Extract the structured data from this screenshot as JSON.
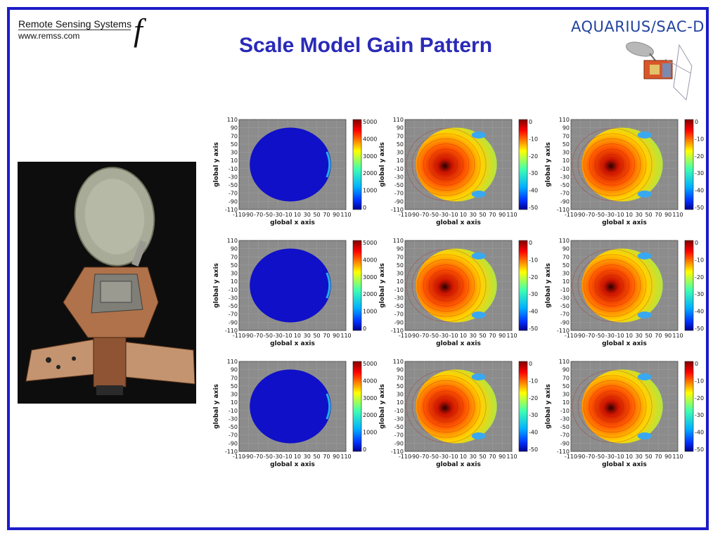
{
  "header": {
    "org_name": "Remote Sensing Systems",
    "org_url": "www.remss.com",
    "org_mark": "f",
    "title": "Scale Model Gain Pattern",
    "mission_logo": "AQUARIUS/SAC-D"
  },
  "icons": {
    "satellite": "satellite-icon",
    "photo": "antenna-scale-model-photo"
  },
  "colors": {
    "frame": "#1c1cc8",
    "title": "#2a2ab8",
    "logo": "#2244a0",
    "disc_blue": "#1010c8"
  },
  "panels": [
    {
      "xlabel": "global x axis",
      "ylabel": "global y axis",
      "colorbar_ticks": [
        "5000",
        "4000",
        "3000",
        "2000",
        "1000",
        "0"
      ],
      "type": "uniform"
    },
    {
      "xlabel": "global x axis",
      "ylabel": "global y axis",
      "colorbar_ticks": [
        "0",
        "-10",
        "-20",
        "-30",
        "-40",
        "-50"
      ],
      "type": "gain"
    },
    {
      "xlabel": "global x axis",
      "ylabel": "global y axis",
      "colorbar_ticks": [
        "0",
        "-10",
        "-20",
        "-30",
        "-40",
        "-50"
      ],
      "type": "gain"
    },
    {
      "xlabel": "global x axis",
      "ylabel": "global y axis",
      "colorbar_ticks": [
        "5000",
        "4000",
        "3000",
        "2000",
        "1000",
        "0"
      ],
      "type": "uniform"
    },
    {
      "xlabel": "global x axis",
      "ylabel": "global y axis",
      "colorbar_ticks": [
        "0",
        "-10",
        "-20",
        "-30",
        "-40",
        "-50"
      ],
      "type": "gain"
    },
    {
      "xlabel": "global x axis",
      "ylabel": "global y axis",
      "colorbar_ticks": [
        "0",
        "-10",
        "-20",
        "-30",
        "-40",
        "-50"
      ],
      "type": "gain"
    },
    {
      "xlabel": "global x axis",
      "ylabel": "global y axis",
      "colorbar_ticks": [
        "5000",
        "4000",
        "3000",
        "2000",
        "1000",
        "0"
      ],
      "type": "uniform"
    },
    {
      "xlabel": "global x axis",
      "ylabel": "global y axis",
      "colorbar_ticks": [
        "0",
        "-10",
        "-20",
        "-30",
        "-40",
        "-50"
      ],
      "type": "gain"
    },
    {
      "xlabel": "global x axis",
      "ylabel": "global y axis",
      "colorbar_ticks": [
        "0",
        "-10",
        "-20",
        "-30",
        "-40",
        "-50"
      ],
      "type": "gain"
    }
  ],
  "axis": {
    "y_ticks": [
      "110",
      "90",
      "70",
      "50",
      "30",
      "10",
      "-10",
      "-30",
      "-50",
      "-70",
      "-90",
      "-110"
    ],
    "x_ticks": [
      "-110",
      "-90",
      "-70",
      "-50",
      "-30",
      "-10",
      "10",
      "30",
      "50",
      "70",
      "90",
      "110"
    ]
  }
}
